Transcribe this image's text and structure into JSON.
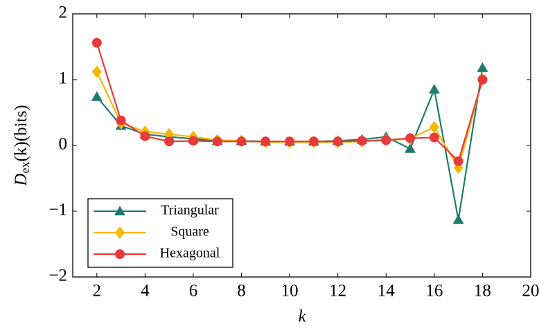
{
  "chart_data": {
    "type": "line",
    "xlabel": "k",
    "ylabel": [
      "D",
      "ex",
      "(k)(bits)"
    ],
    "x": [
      2,
      3,
      4,
      5,
      6,
      7,
      8,
      9,
      10,
      11,
      12,
      13,
      14,
      15,
      16,
      17,
      18
    ],
    "series": [
      {
        "name": "Triangular",
        "color": "#1f7a6e",
        "marker": "triangle",
        "values": [
          0.74,
          0.3,
          0.17,
          0.13,
          0.1,
          0.07,
          0.07,
          0.06,
          0.06,
          0.06,
          0.07,
          0.09,
          0.13,
          -0.05,
          0.85,
          -1.13,
          1.18
        ]
      },
      {
        "name": "Square",
        "color": "#f5b800",
        "marker": "diamond",
        "values": [
          1.12,
          0.34,
          0.21,
          0.17,
          0.13,
          0.08,
          0.07,
          0.05,
          0.05,
          0.05,
          0.05,
          0.06,
          0.08,
          0.1,
          0.28,
          -0.34,
          1.0
        ]
      },
      {
        "name": "Hexagonal",
        "color": "#e83a3a",
        "marker": "circle",
        "values": [
          1.56,
          0.38,
          0.14,
          0.06,
          0.07,
          0.06,
          0.06,
          0.06,
          0.06,
          0.06,
          0.06,
          0.07,
          0.08,
          0.11,
          0.12,
          -0.24,
          1.0
        ]
      }
    ],
    "xlim": [
      1,
      20
    ],
    "xticks": [
      2,
      4,
      6,
      8,
      10,
      12,
      14,
      16,
      18,
      20
    ],
    "ylim": [
      -2,
      2
    ],
    "yticks": [
      {
        "value": -2,
        "label": "−2"
      },
      {
        "value": -1,
        "label": "−1"
      },
      0,
      1,
      2
    ],
    "legend": "lower left",
    "grid": false
  }
}
